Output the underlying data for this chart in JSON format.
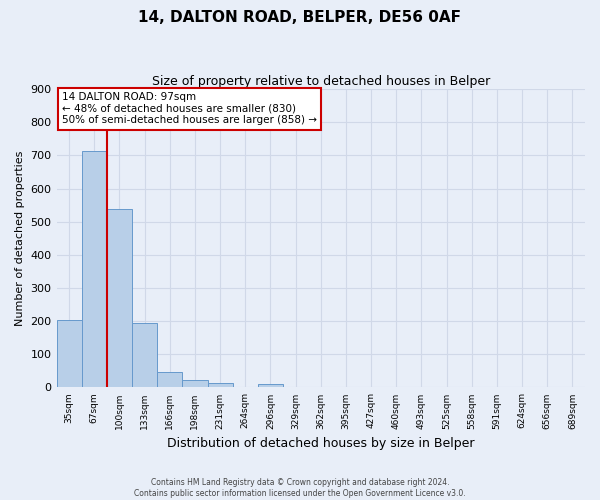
{
  "title": "14, DALTON ROAD, BELPER, DE56 0AF",
  "subtitle": "Size of property relative to detached houses in Belper",
  "xlabel": "Distribution of detached houses by size in Belper",
  "ylabel": "Number of detached properties",
  "bar_labels": [
    "35sqm",
    "67sqm",
    "100sqm",
    "133sqm",
    "166sqm",
    "198sqm",
    "231sqm",
    "264sqm",
    "296sqm",
    "329sqm",
    "362sqm",
    "395sqm",
    "427sqm",
    "460sqm",
    "493sqm",
    "525sqm",
    "558sqm",
    "591sqm",
    "624sqm",
    "656sqm",
    "689sqm"
  ],
  "bar_heights": [
    203,
    713,
    538,
    193,
    48,
    22,
    12,
    0,
    10,
    0,
    0,
    0,
    0,
    0,
    0,
    0,
    0,
    0,
    0,
    0,
    0
  ],
  "bar_color": "#b8cfe8",
  "bar_edge_color": "#6699cc",
  "background_color": "#e8eef8",
  "grid_color": "#d0d8e8",
  "ylim": [
    0,
    900
  ],
  "yticks": [
    0,
    100,
    200,
    300,
    400,
    500,
    600,
    700,
    800,
    900
  ],
  "annotation_line1": "14 DALTON ROAD: 97sqm",
  "annotation_line2": "← 48% of detached houses are smaller (830)",
  "annotation_line3": "50% of semi-detached houses are larger (858) →",
  "annotation_box_facecolor": "#ffffff",
  "annotation_box_edgecolor": "#cc0000",
  "red_line_color": "#cc0000",
  "footer_line1": "Contains HM Land Registry data © Crown copyright and database right 2024.",
  "footer_line2": "Contains public sector information licensed under the Open Government Licence v3.0."
}
